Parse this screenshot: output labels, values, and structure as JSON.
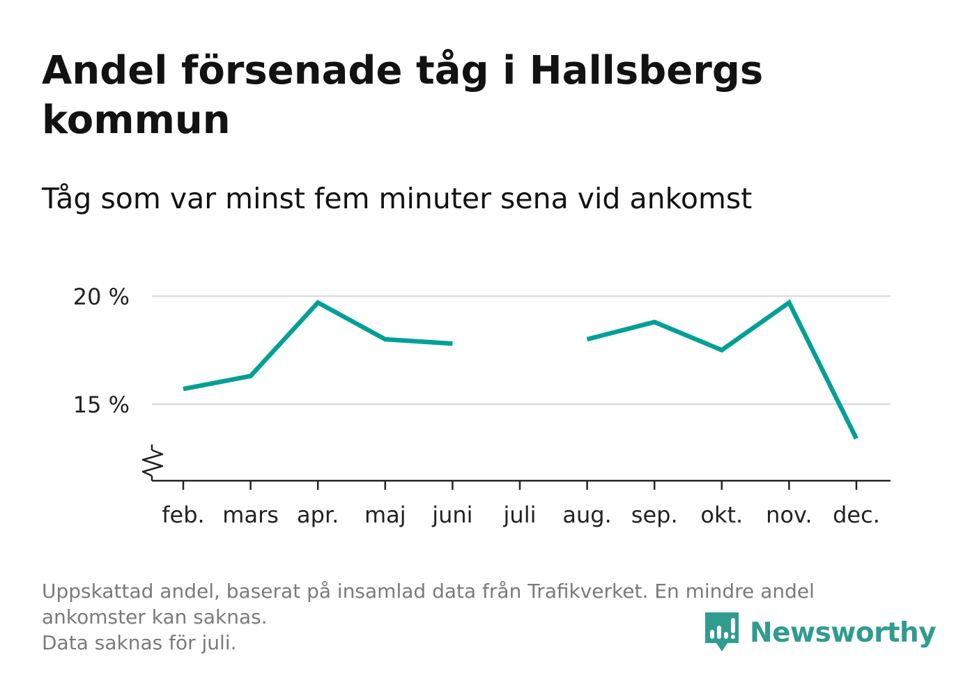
{
  "title": "Andel försenade tåg i Hallsbergs kommun",
  "subtitle": "Tåg som var minst fem minuter sena vid ankomst",
  "chart_data": {
    "type": "line",
    "categories": [
      "feb.",
      "mars",
      "apr.",
      "maj",
      "juni",
      "juli",
      "aug.",
      "sep.",
      "okt.",
      "nov.",
      "dec."
    ],
    "series": [
      {
        "values": [
          15.7,
          16.3,
          19.7,
          18.0,
          17.8,
          null,
          18.0,
          18.8,
          17.5,
          19.7,
          13.4
        ]
      }
    ],
    "yticks": [
      15,
      20
    ],
    "ytick_labels": [
      "15 %",
      "20 %"
    ],
    "ylim": [
      11.5,
      20
    ],
    "y_axis_break": true,
    "grid": true,
    "line_color": "#00a096"
  },
  "footnote": {
    "lines": [
      "Uppskattad andel, baserat på insamlad data från Trafikverket. En mindre andel",
      "ankomster kan saknas.",
      "Data saknas för juli."
    ]
  },
  "brand": {
    "name": "Newsworthy",
    "color": "#2e9c8f"
  }
}
